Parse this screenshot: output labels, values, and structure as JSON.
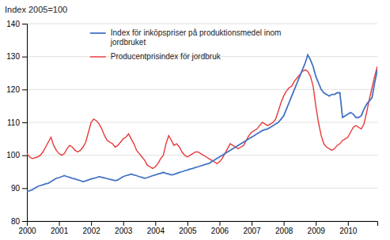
{
  "chart_data": {
    "type": "line",
    "title": "Index 2005=100",
    "x": [
      2000.0,
      2000.083,
      2000.167,
      2000.25,
      2000.333,
      2000.417,
      2000.5,
      2000.583,
      2000.667,
      2000.75,
      2000.833,
      2000.917,
      2001.0,
      2001.083,
      2001.167,
      2001.25,
      2001.333,
      2001.417,
      2001.5,
      2001.583,
      2001.667,
      2001.75,
      2001.833,
      2001.917,
      2002.0,
      2002.083,
      2002.167,
      2002.25,
      2002.333,
      2002.417,
      2002.5,
      2002.583,
      2002.667,
      2002.75,
      2002.833,
      2002.917,
      2003.0,
      2003.083,
      2003.167,
      2003.25,
      2003.333,
      2003.417,
      2003.5,
      2003.583,
      2003.667,
      2003.75,
      2003.833,
      2003.917,
      2004.0,
      2004.083,
      2004.167,
      2004.25,
      2004.333,
      2004.417,
      2004.5,
      2004.583,
      2004.667,
      2004.75,
      2004.833,
      2004.917,
      2005.0,
      2005.083,
      2005.167,
      2005.25,
      2005.333,
      2005.417,
      2005.5,
      2005.583,
      2005.667,
      2005.75,
      2005.833,
      2005.917,
      2006.0,
      2006.083,
      2006.167,
      2006.25,
      2006.333,
      2006.417,
      2006.5,
      2006.583,
      2006.667,
      2006.75,
      2006.833,
      2006.917,
      2007.0,
      2007.083,
      2007.167,
      2007.25,
      2007.333,
      2007.417,
      2007.5,
      2007.583,
      2007.667,
      2007.75,
      2007.833,
      2007.917,
      2008.0,
      2008.083,
      2008.167,
      2008.25,
      2008.333,
      2008.417,
      2008.5,
      2008.583,
      2008.667,
      2008.75,
      2008.833,
      2008.917,
      2009.0,
      2009.083,
      2009.167,
      2009.25,
      2009.333,
      2009.417,
      2009.5,
      2009.583,
      2009.667,
      2009.75,
      2009.833,
      2009.917,
      2010.0,
      2010.083,
      2010.167,
      2010.25,
      2010.333,
      2010.417,
      2010.5,
      2010.583,
      2010.667,
      2010.75,
      2010.833,
      2010.917
    ],
    "series": [
      {
        "name": "Index för inköpspriser på produktionsmedel inom\njordbruket",
        "color": "#4472C4",
        "values": [
          89.0,
          89.2,
          89.5,
          90.0,
          90.5,
          90.8,
          91.0,
          91.3,
          91.5,
          92.0,
          92.5,
          93.0,
          93.2,
          93.5,
          93.8,
          93.5,
          93.3,
          93.0,
          92.8,
          92.5,
          92.3,
          92.0,
          92.2,
          92.5,
          92.8,
          93.0,
          93.2,
          93.5,
          93.3,
          93.1,
          92.9,
          92.7,
          92.5,
          92.3,
          92.5,
          93.0,
          93.5,
          93.8,
          94.0,
          94.3,
          94.0,
          93.8,
          93.5,
          93.3,
          93.0,
          93.2,
          93.5,
          93.8,
          94.0,
          94.3,
          94.5,
          94.8,
          94.5,
          94.3,
          94.0,
          94.2,
          94.5,
          94.8,
          95.0,
          95.3,
          95.5,
          95.8,
          96.0,
          96.3,
          96.5,
          96.8,
          97.0,
          97.3,
          97.5,
          98.0,
          98.5,
          99.0,
          99.5,
          100.0,
          100.5,
          101.0,
          101.5,
          102.0,
          102.5,
          103.0,
          103.5,
          104.0,
          104.5,
          105.0,
          105.5,
          106.0,
          106.5,
          107.0,
          107.5,
          107.8,
          108.0,
          108.5,
          109.0,
          109.5,
          110.0,
          111.0,
          112.0,
          114.0,
          116.0,
          118.0,
          120.0,
          122.0,
          124.0,
          126.0,
          128.0,
          130.5,
          129.0,
          127.0,
          124.0,
          122.0,
          120.0,
          119.0,
          118.5,
          118.0,
          118.5,
          118.5,
          119.0,
          119.0,
          111.5,
          112.0,
          112.5,
          113.0,
          112.5,
          111.5,
          111.5,
          112.0,
          114.0,
          115.5,
          116.5,
          117.5,
          122.0,
          126.0
        ]
      },
      {
        "name": "Producentprisindex för jordbruk",
        "color": "#E8393A",
        "values": [
          100.5,
          99.5,
          99.0,
          99.2,
          99.5,
          100.0,
          101.0,
          102.5,
          104.0,
          105.5,
          103.0,
          101.5,
          100.5,
          100.0,
          100.5,
          102.0,
          103.0,
          102.5,
          101.5,
          101.0,
          101.5,
          102.5,
          104.0,
          107.0,
          110.0,
          111.0,
          110.5,
          109.5,
          108.0,
          106.0,
          104.5,
          104.0,
          103.5,
          102.5,
          103.0,
          104.0,
          105.0,
          105.5,
          106.5,
          105.0,
          103.5,
          101.5,
          100.5,
          99.5,
          98.5,
          97.0,
          96.5,
          96.0,
          96.5,
          97.5,
          99.0,
          100.0,
          103.5,
          106.0,
          104.5,
          103.0,
          103.5,
          102.5,
          101.0,
          100.0,
          99.5,
          100.0,
          100.5,
          101.0,
          101.0,
          100.5,
          100.0,
          99.5,
          99.0,
          98.5,
          98.0,
          97.5,
          98.0,
          99.0,
          100.5,
          102.0,
          103.5,
          103.0,
          102.5,
          102.0,
          102.5,
          103.0,
          104.5,
          106.0,
          107.0,
          107.5,
          108.0,
          109.0,
          110.0,
          109.5,
          109.0,
          109.5,
          110.0,
          111.0,
          113.5,
          116.0,
          118.0,
          119.5,
          120.5,
          121.0,
          122.5,
          123.5,
          124.5,
          125.5,
          126.0,
          125.5,
          124.0,
          121.0,
          115.0,
          110.0,
          106.0,
          103.5,
          102.5,
          102.0,
          101.5,
          102.0,
          103.0,
          103.5,
          104.5,
          105.0,
          105.5,
          107.0,
          108.5,
          109.0,
          108.5,
          108.0,
          109.5,
          113.0,
          117.0,
          120.5,
          124.0,
          127.0
        ]
      }
    ],
    "xlim": [
      2000.0,
      2010.917
    ],
    "xticks": [
      2000,
      2001,
      2002,
      2003,
      2004,
      2005,
      2006,
      2007,
      2008,
      2009,
      2010
    ],
    "ylim": [
      80,
      140
    ],
    "yticks": [
      80,
      90,
      100,
      110,
      120,
      130,
      140
    ],
    "grid": true,
    "legend": "upper left"
  }
}
